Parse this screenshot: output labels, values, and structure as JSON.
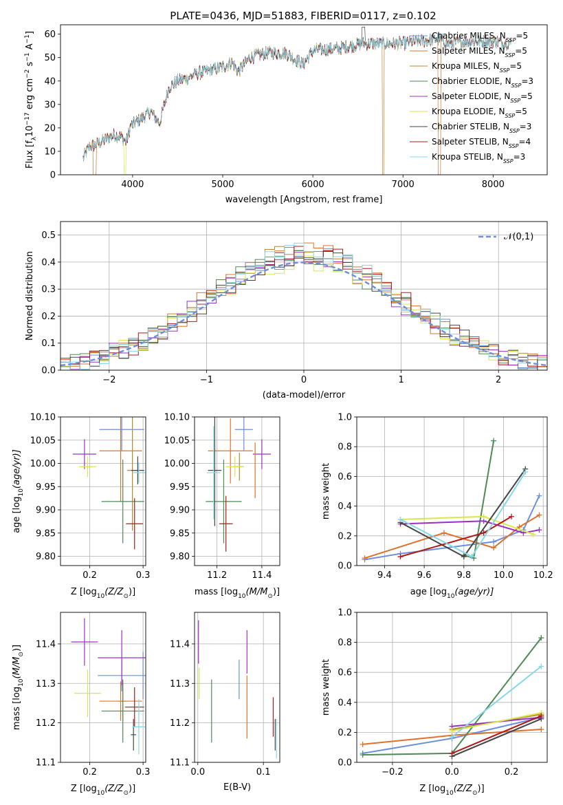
{
  "figure": {
    "title": "PLATE=0436, MJD=51883, FIBERID=0117, z=0.102"
  },
  "models": [
    {
      "name": "Chabrier MILES",
      "nssp": "5",
      "color": "#6b8fdc"
    },
    {
      "name": "Salpeter MILES",
      "nssp": "5",
      "color": "#e0702a"
    },
    {
      "name": "Kroupa MILES",
      "nssp": "5",
      "color": "#b8862e"
    },
    {
      "name": "Chabrier ELODIE",
      "nssp": "3",
      "color": "#4e8a55"
    },
    {
      "name": "Salpeter ELODIE",
      "nssp": "5",
      "color": "#9b30c0"
    },
    {
      "name": "Kroupa ELODIE",
      "nssp": "5",
      "color": "#d8e84a"
    },
    {
      "name": "Chabrier STELIB",
      "nssp": "3",
      "color": "#444444"
    },
    {
      "name": "Salpeter STELIB",
      "nssp": "4",
      "color": "#b01818"
    },
    {
      "name": "Kroupa STELIB",
      "nssp": "3",
      "color": "#86d8e8"
    }
  ],
  "chart_data": [
    {
      "id": "spectrum",
      "type": "line",
      "title": "PLATE=0436, MJD=51883, FIBERID=0117, z=0.102",
      "xlabel": "wavelength [Angstrom, rest frame]",
      "ylabel_parts": [
        "Flux [f",
        "λ",
        "10",
        "−17",
        " erg cm",
        "−2",
        " s",
        "−1",
        " A",
        "−1",
        "]"
      ],
      "xlim": [
        3200,
        8600
      ],
      "ylim": [
        0,
        64
      ],
      "xticks": [
        4000,
        5000,
        6000,
        7000,
        8000
      ],
      "yticks": [
        0,
        10,
        20,
        30,
        40,
        50,
        60
      ],
      "legend_position": "top-right",
      "spectrum_anchors": [
        [
          3450,
          7
        ],
        [
          3520,
          12
        ],
        [
          3600,
          13
        ],
        [
          3700,
          15
        ],
        [
          3800,
          17
        ],
        [
          3880,
          16
        ],
        [
          3930,
          14
        ],
        [
          3980,
          21
        ],
        [
          4100,
          24
        ],
        [
          4200,
          27
        ],
        [
          4300,
          22
        ],
        [
          4400,
          37
        ],
        [
          4500,
          40
        ],
        [
          4600,
          41
        ],
        [
          4700,
          43
        ],
        [
          4800,
          44
        ],
        [
          4900,
          45
        ],
        [
          5000,
          46
        ],
        [
          5100,
          48
        ],
        [
          5175,
          44
        ],
        [
          5300,
          50
        ],
        [
          5500,
          52
        ],
        [
          5700,
          52
        ],
        [
          5890,
          47
        ],
        [
          6000,
          53
        ],
        [
          6300,
          54
        ],
        [
          6560,
          56
        ],
        [
          6800,
          56
        ],
        [
          7000,
          56
        ],
        [
          7200,
          57
        ],
        [
          7400,
          58
        ],
        [
          7500,
          56
        ],
        [
          7700,
          57
        ],
        [
          8000,
          57
        ],
        [
          8200,
          56
        ]
      ],
      "grid": false
    },
    {
      "id": "residuals",
      "type": "histogram",
      "xlabel": "(data-model)/error",
      "ylabel": "Normed distribution",
      "xlim": [
        -2.5,
        2.5
      ],
      "ylim": [
        0,
        0.55
      ],
      "xticks": [
        -2,
        -1,
        0,
        1,
        2
      ],
      "yticks": [
        0.0,
        0.1,
        0.2,
        0.3,
        0.4,
        0.5
      ],
      "bin_width": 0.1,
      "reference_curve": {
        "label": "𝒩(0,1)",
        "mean": 0,
        "sigma": 1,
        "color": "#6b8fdc"
      },
      "legend_position": "top-right",
      "grid": true
    },
    {
      "id": "age_vs_Z",
      "type": "scatter",
      "xlabel_parts": [
        "Z [log",
        "10",
        "(Z/Z",
        "⊙",
        ")]"
      ],
      "ylabel_parts": [
        "age  [log",
        "10",
        "(age/yr)]"
      ],
      "xlim": [
        0.145,
        0.305
      ],
      "ylim": [
        9.78,
        10.1
      ],
      "xticks": [
        0.2,
        0.3
      ],
      "yticks": [
        9.8,
        9.85,
        9.9,
        9.95,
        10.0,
        10.05,
        10.1
      ],
      "points": [
        {
          "model": 0,
          "x": 0.26,
          "y": 10.073,
          "xerr": 0.042,
          "yerr": 0.045
        },
        {
          "model": 1,
          "x": 0.258,
          "y": 10.027,
          "xerr": 0.04,
          "yerr": 0.11
        },
        {
          "model": 2,
          "x": 0.28,
          "y": 9.985,
          "xerr": 0.01,
          "yerr": 0.13
        },
        {
          "model": 3,
          "x": 0.262,
          "y": 9.918,
          "xerr": 0.04,
          "yerr": 0.09
        },
        {
          "model": 4,
          "x": 0.19,
          "y": 10.02,
          "xerr": 0.022,
          "yerr": 0.032
        },
        {
          "model": 5,
          "x": 0.196,
          "y": 9.993,
          "xerr": 0.016,
          "yerr": 0.022
        },
        {
          "model": 6,
          "x": 0.29,
          "y": 9.985,
          "xerr": 0.012,
          "yerr": 0.03
        },
        {
          "model": 7,
          "x": 0.284,
          "y": 9.87,
          "xerr": 0.016,
          "yerr": 0.055
        },
        {
          "model": 8,
          "x": 0.292,
          "y": 9.98,
          "xerr": 0.012,
          "yerr": 0.022
        }
      ],
      "grid": true
    },
    {
      "id": "age_vs_mass",
      "type": "scatter",
      "xlabel_parts": [
        "mass [log",
        "10",
        "(M/M",
        "⊙",
        ")]"
      ],
      "ylabel": "",
      "xlim": [
        11.1,
        11.48
      ],
      "ylim": [
        9.78,
        10.1
      ],
      "xticks": [
        11.2,
        11.4
      ],
      "yticks": [
        9.8,
        9.85,
        9.9,
        9.95,
        10.0,
        10.05,
        10.1
      ],
      "points": [
        {
          "model": 0,
          "x": 11.32,
          "y": 10.073,
          "xerr": 0.04,
          "yerr": 0.045
        },
        {
          "model": 1,
          "x": 11.26,
          "y": 10.027,
          "xerr": 0.1,
          "yerr": 0.07
        },
        {
          "model": 2,
          "x": 11.3,
          "y": 9.993,
          "xerr": 0.02,
          "yerr": 0.03
        },
        {
          "model": 3,
          "x": 11.23,
          "y": 9.918,
          "xerr": 0.08,
          "yerr": 0.09
        },
        {
          "model": 4,
          "x": 11.4,
          "y": 10.02,
          "xerr": 0.04,
          "yerr": 0.032
        },
        {
          "model": 5,
          "x": 11.28,
          "y": 9.993,
          "xerr": 0.04,
          "yerr": 0.022
        },
        {
          "model": 6,
          "x": 11.19,
          "y": 9.985,
          "xerr": 0.03,
          "yerr": 0.12
        },
        {
          "model": 7,
          "x": 11.24,
          "y": 9.87,
          "xerr": 0.03,
          "yerr": 0.06
        },
        {
          "model": 8,
          "x": 11.185,
          "y": 9.98,
          "xerr": 0.03,
          "yerr": 0.1
        },
        {
          "model": 1,
          "x": 11.37,
          "y": 9.985,
          "xerr": 0.0,
          "yerr": 0.06
        }
      ],
      "grid": true
    },
    {
      "id": "weight_vs_age",
      "type": "line",
      "xlabel_parts": [
        "age  [log",
        "10",
        "(age/yr)]"
      ],
      "ylabel": "mass weight",
      "xlim": [
        9.26,
        10.22
      ],
      "ylim": [
        0.0,
        1.0
      ],
      "xticks": [
        9.4,
        9.6,
        9.8,
        10.0,
        10.2
      ],
      "yticks": [
        0.0,
        0.2,
        0.4,
        0.6,
        0.8,
        1.0
      ],
      "series": [
        {
          "model": 0,
          "points": [
            [
              9.3,
              0.04
            ],
            [
              9.48,
              0.08
            ],
            [
              9.95,
              0.16
            ],
            [
              10.1,
              0.24
            ],
            [
              10.18,
              0.47
            ]
          ]
        },
        {
          "model": 1,
          "points": [
            [
              9.3,
              0.05
            ],
            [
              9.7,
              0.22
            ],
            [
              9.95,
              0.12
            ],
            [
              10.08,
              0.26
            ],
            [
              10.18,
              0.34
            ]
          ]
        },
        {
          "model": 3,
          "points": [
            [
              9.8,
              0.07
            ],
            [
              9.85,
              0.05
            ],
            [
              9.95,
              0.84
            ]
          ]
        },
        {
          "model": 4,
          "points": [
            [
              9.48,
              0.28
            ],
            [
              9.9,
              0.3
            ],
            [
              10.1,
              0.22
            ],
            [
              10.18,
              0.24
            ]
          ]
        },
        {
          "model": 5,
          "points": [
            [
              9.48,
              0.31
            ],
            [
              9.9,
              0.33
            ],
            [
              10.15,
              0.21
            ]
          ]
        },
        {
          "model": 6,
          "points": [
            [
              9.48,
              0.29
            ],
            [
              9.8,
              0.06
            ],
            [
              10.11,
              0.65
            ]
          ]
        },
        {
          "model": 7,
          "points": [
            [
              9.48,
              0.06
            ],
            [
              9.9,
              0.22
            ],
            [
              10.04,
              0.33
            ]
          ]
        },
        {
          "model": 8,
          "points": [
            [
              9.48,
              0.31
            ],
            [
              9.84,
              0.06
            ],
            [
              10.11,
              0.63
            ]
          ]
        }
      ],
      "grid": true
    },
    {
      "id": "mass_vs_Z",
      "type": "scatter",
      "xlabel_parts": [
        "Z [log",
        "10",
        "(Z/Z",
        "⊙",
        ")]"
      ],
      "ylabel_parts": [
        "mass [log",
        "10",
        "(M/M",
        "⊙",
        ")]"
      ],
      "xlim": [
        0.145,
        0.305
      ],
      "ylim": [
        11.1,
        11.48
      ],
      "xticks": [
        0.2,
        0.3
      ],
      "yticks": [
        11.1,
        11.2,
        11.3,
        11.4
      ],
      "points": [
        {
          "model": 0,
          "x": 0.26,
          "y": 11.32,
          "xerr": 0.045,
          "yerr": 0.04
        },
        {
          "model": 1,
          "x": 0.258,
          "y": 11.255,
          "xerr": 0.04,
          "yerr": 0.05
        },
        {
          "model": 2,
          "x": 0.262,
          "y": 11.255,
          "xerr": 0.01,
          "yerr": 0.05
        },
        {
          "model": 3,
          "x": 0.262,
          "y": 11.23,
          "xerr": 0.04,
          "yerr": 0.08
        },
        {
          "model": 4,
          "x": 0.19,
          "y": 11.405,
          "xerr": 0.025,
          "yerr": 0.06
        },
        {
          "model": 5,
          "x": 0.196,
          "y": 11.275,
          "xerr": 0.025,
          "yerr": 0.06
        },
        {
          "model": 6,
          "x": 0.282,
          "y": 11.17,
          "xerr": 0.005,
          "yerr": 0.04
        },
        {
          "model": 7,
          "x": 0.284,
          "y": 11.24,
          "xerr": 0.018,
          "yerr": 0.05
        },
        {
          "model": 8,
          "x": 0.292,
          "y": 11.19,
          "xerr": 0.012,
          "yerr": 0.07
        },
        {
          "model": 0,
          "x": 0.3,
          "y": 11.32,
          "xerr": 0.0,
          "yerr": 0.06
        },
        {
          "model": 4,
          "x": 0.26,
          "y": 11.365,
          "xerr": 0.045,
          "yerr": 0.07
        }
      ],
      "grid": true
    },
    {
      "id": "mass_vs_EBV",
      "type": "scatter",
      "xlabel": "E(B-V)",
      "ylabel": "",
      "xlim": [
        -0.005,
        0.125
      ],
      "ylim": [
        11.1,
        11.48
      ],
      "xticks": [
        0.0,
        0.1
      ],
      "yticks": [
        11.1,
        11.2,
        11.3,
        11.4
      ],
      "points": [
        {
          "model": 4,
          "x": 0.001,
          "y": 11.405,
          "xerr": 0.0,
          "yerr": 0.055
        },
        {
          "model": 5,
          "x": 0.002,
          "y": 11.3,
          "xerr": 0.0,
          "yerr": 0.04
        },
        {
          "model": 3,
          "x": 0.021,
          "y": 11.23,
          "xerr": 0.0,
          "yerr": 0.08
        },
        {
          "model": 0,
          "x": 0.063,
          "y": 11.31,
          "xerr": 0.0,
          "yerr": 0.05
        },
        {
          "model": 1,
          "x": 0.075,
          "y": 11.24,
          "xerr": 0.0,
          "yerr": 0.08
        },
        {
          "model": 4,
          "x": 0.075,
          "y": 11.38,
          "xerr": 0.0,
          "yerr": 0.055
        },
        {
          "model": 7,
          "x": 0.115,
          "y": 11.215,
          "xerr": 0.0,
          "yerr": 0.05
        },
        {
          "model": 8,
          "x": 0.12,
          "y": 11.16,
          "xerr": 0.0,
          "yerr": 0.05
        },
        {
          "model": 6,
          "x": 0.118,
          "y": 11.17,
          "xerr": 0.0,
          "yerr": 0.04
        }
      ],
      "grid": true
    },
    {
      "id": "weight_vs_Z",
      "type": "line",
      "xlabel_parts": [
        "Z [log",
        "10",
        "(Z/Z",
        "⊙",
        ")]"
      ],
      "ylabel": "mass weight",
      "xlim": [
        -0.32,
        0.32
      ],
      "ylim": [
        0.0,
        1.0
      ],
      "xticks": [
        -0.2,
        0.0,
        0.2
      ],
      "yticks": [
        0.0,
        0.2,
        0.4,
        0.6,
        0.8,
        1.0
      ],
      "series": [
        {
          "model": 0,
          "points": [
            [
              -0.3,
              0.06
            ],
            [
              0.0,
              0.16
            ],
            [
              0.3,
              0.3
            ]
          ]
        },
        {
          "model": 1,
          "points": [
            [
              -0.3,
              0.12
            ],
            [
              0.0,
              0.18
            ],
            [
              0.3,
              0.22
            ]
          ]
        },
        {
          "model": 2,
          "points": [
            [
              0.0,
              0.22
            ],
            [
              0.3,
              0.32
            ]
          ]
        },
        {
          "model": 3,
          "points": [
            [
              -0.3,
              0.05
            ],
            [
              0.0,
              0.06
            ],
            [
              0.3,
              0.83
            ]
          ]
        },
        {
          "model": 4,
          "points": [
            [
              0.0,
              0.24
            ],
            [
              0.3,
              0.3
            ]
          ]
        },
        {
          "model": 5,
          "points": [
            [
              0.0,
              0.21
            ],
            [
              0.3,
              0.33
            ]
          ]
        },
        {
          "model": 6,
          "points": [
            [
              0.0,
              0.04
            ],
            [
              0.3,
              0.29
            ]
          ]
        },
        {
          "model": 7,
          "points": [
            [
              0.0,
              0.06
            ],
            [
              0.3,
              0.31
            ]
          ]
        },
        {
          "model": 8,
          "points": [
            [
              0.0,
              0.17
            ],
            [
              0.3,
              0.64
            ]
          ]
        }
      ],
      "grid": true
    }
  ]
}
